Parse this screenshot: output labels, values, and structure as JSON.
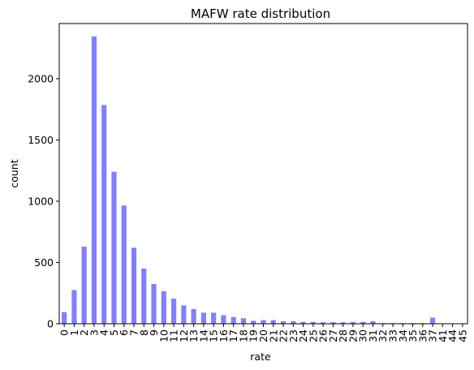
{
  "chart_data": {
    "type": "bar",
    "title": "MAFW rate distribution",
    "xlabel": "rate",
    "ylabel": "count",
    "ylim": [
      0,
      2450
    ],
    "yticks": [
      0,
      500,
      1000,
      1500,
      2000
    ],
    "bar_color": "#8080ff",
    "categories": [
      "0",
      "1",
      "2",
      "3",
      "4",
      "5",
      "6",
      "7",
      "8",
      "9",
      "10",
      "11",
      "12",
      "13",
      "14",
      "15",
      "16",
      "17",
      "18",
      "19",
      "20",
      "21",
      "22",
      "23",
      "24",
      "25",
      "26",
      "27",
      "28",
      "29",
      "30",
      "31",
      "32",
      "33",
      "34",
      "35",
      "36",
      "37",
      "41",
      "44",
      "45"
    ],
    "values": [
      95,
      275,
      630,
      2345,
      1785,
      1240,
      965,
      620,
      450,
      325,
      265,
      205,
      150,
      120,
      90,
      90,
      70,
      55,
      45,
      25,
      30,
      30,
      20,
      20,
      15,
      15,
      12,
      12,
      12,
      15,
      15,
      20,
      5,
      5,
      5,
      5,
      5,
      50,
      3,
      3,
      3
    ]
  }
}
